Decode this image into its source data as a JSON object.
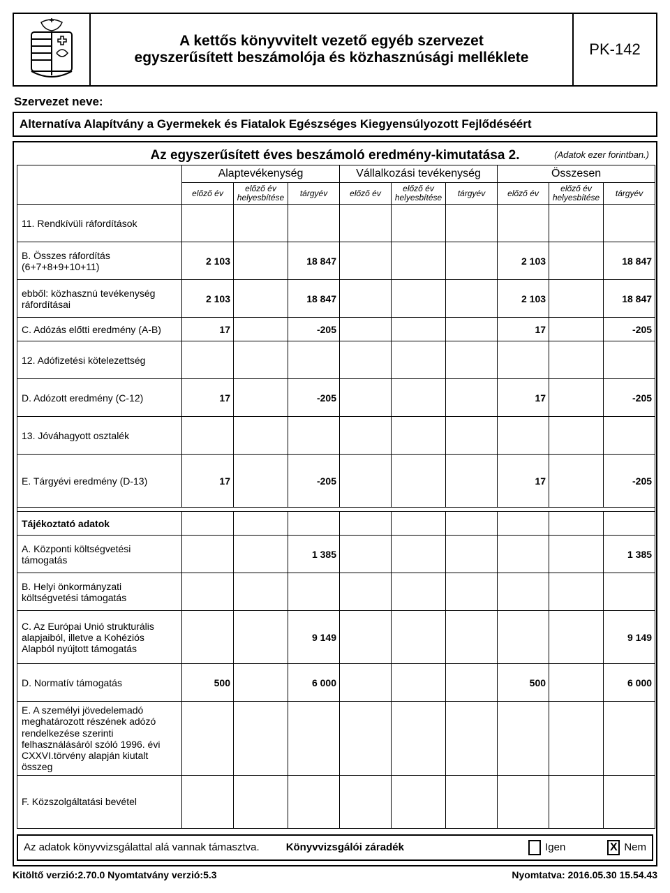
{
  "header": {
    "title_line1": "A kettős könyvvitelt vezető egyéb szervezet",
    "title_line2": "egyszerűsített beszámolója és közhasznúsági melléklete",
    "pk": "PK-142"
  },
  "org_label": "Szervezet neve:",
  "org_name": "Alternatíva Alapítvány a Gyermekek és Fiatalok Egészséges Kiegyensúlyozott Fejlődéséért",
  "section_title": "Az egyszerűsített éves beszámoló eredmény-kimutatása 2.",
  "unit_note": "(Adatok ezer forintban.)",
  "group_headers": [
    "Alaptevékenység",
    "Vállalkozási tevékenység",
    "Összesen"
  ],
  "sub_headers": {
    "a": "előző év",
    "b": "előző év helyesbítése",
    "c": "tárgyév"
  },
  "rows": [
    {
      "label": "11. Rendkívüli ráfordítások",
      "h": "tall",
      "v": [
        "",
        "",
        "",
        "",
        "",
        "",
        "",
        "",
        ""
      ]
    },
    {
      "label": "B. Összes ráfordítás (6+7+8+9+10+11)",
      "h": "tall",
      "v": [
        "2 103",
        "",
        "18 847",
        "",
        "",
        "",
        "2 103",
        "",
        "18 847"
      ]
    },
    {
      "label": "ebből: közhasznú tevékenység ráfordításai",
      "h": "tall",
      "v": [
        "2 103",
        "",
        "18 847",
        "",
        "",
        "",
        "2 103",
        "",
        "18 847"
      ]
    },
    {
      "label": "C. Adózás előtti eredmény (A-B)",
      "h": "short",
      "v": [
        "17",
        "",
        "-205",
        "",
        "",
        "",
        "17",
        "",
        "-205"
      ]
    },
    {
      "label": "12. Adófizetési kötelezettség",
      "h": "tall",
      "v": [
        "",
        "",
        "",
        "",
        "",
        "",
        "",
        "",
        ""
      ]
    },
    {
      "label": "D. Adózott eredmény (C-12)",
      "h": "tall",
      "v": [
        "17",
        "",
        "-205",
        "",
        "",
        "",
        "17",
        "",
        "-205"
      ]
    },
    {
      "label": "13. Jóváhagyott osztalék",
      "h": "tall",
      "v": [
        "",
        "",
        "",
        "",
        "",
        "",
        "",
        "",
        ""
      ]
    },
    {
      "label": "E. Tárgyévi eredmény (D-13)",
      "h": "xtall",
      "v": [
        "17",
        "",
        "-205",
        "",
        "",
        "",
        "17",
        "",
        "-205"
      ]
    }
  ],
  "info_header": "Tájékoztató adatok",
  "info_rows": [
    {
      "label": "A. Központi költségvetési támogatás",
      "h": "tall",
      "v": [
        "",
        "",
        "1 385",
        "",
        "",
        "",
        "",
        "",
        "1 385"
      ]
    },
    {
      "label": "B. Helyi önkormányzati költségvetési támogatás",
      "h": "tall",
      "v": [
        "",
        "",
        "",
        "",
        "",
        "",
        "",
        "",
        ""
      ]
    },
    {
      "label": "C. Az Európai Unió strukturális alapjaiból, illetve a Kohéziós Alapból nyújtott támogatás",
      "h": "xtall",
      "v": [
        "",
        "",
        "9 149",
        "",
        "",
        "",
        "",
        "",
        "9 149"
      ]
    },
    {
      "label": "D. Normatív támogatás",
      "h": "tall",
      "v": [
        "500",
        "",
        "6 000",
        "",
        "",
        "",
        "500",
        "",
        "6 000"
      ]
    },
    {
      "label": "E. A személyi jövedelemadó meghatározott részének adózó rendelkezése szerinti felhasználásáról szóló 1996. évi CXXVI.törvény alapján kiutalt összeg",
      "h": "xxtall",
      "v": [
        "",
        "",
        "",
        "",
        "",
        "",
        "",
        "",
        ""
      ]
    },
    {
      "label": "F. Közszolgáltatási bevétel",
      "h": "xtall",
      "v": [
        "",
        "",
        "",
        "",
        "",
        "",
        "",
        "",
        ""
      ]
    }
  ],
  "audit": {
    "text": "Az adatok könyvvizsgálattal alá vannak támasztva.",
    "label": "Könyvvizsgálói záradék",
    "yes": "Igen",
    "no": "Nem",
    "checked": "no"
  },
  "footer": {
    "left": "Kitöltő verzió:2.70.0 Nyomtatvány verzió:5.3",
    "right": "Nyomtatva: 2016.05.30 15.54.43"
  }
}
